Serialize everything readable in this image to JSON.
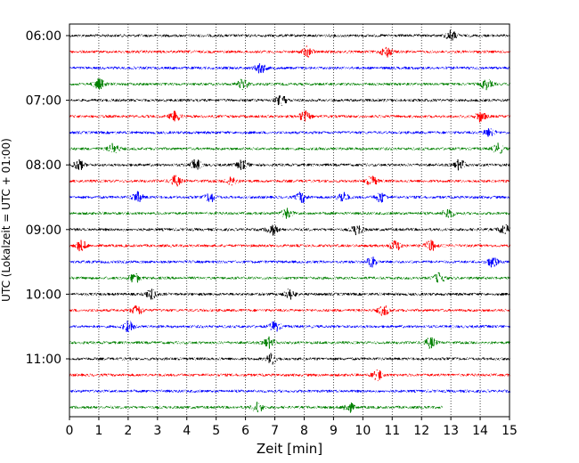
{
  "chart_data": {
    "type": "line",
    "title": "",
    "xlabel": "Zeit  [min]",
    "ylabel": "UTC (Lokalzeit = UTC + 01:00)",
    "xlim": [
      0,
      15
    ],
    "xticks": [
      0,
      1,
      2,
      3,
      4,
      5,
      6,
      7,
      8,
      9,
      10,
      11,
      12,
      13,
      14,
      15
    ],
    "grid": "vertical dotted",
    "trace_interval_minutes": 15,
    "ytick_labels": [
      "06:00",
      "07:00",
      "08:00",
      "09:00",
      "10:00",
      "11:00"
    ],
    "trace_colors": [
      "#000000",
      "#ff0000",
      "#0000ff",
      "#008000"
    ],
    "traces": [
      {
        "start": "06:00",
        "end_minute": 15,
        "events": [
          13.0
        ]
      },
      {
        "start": "06:15",
        "end_minute": 15,
        "events": [
          8.1,
          10.8
        ]
      },
      {
        "start": "06:30",
        "end_minute": 15,
        "events": [
          6.5
        ]
      },
      {
        "start": "06:45",
        "end_minute": 15,
        "events": [
          1.0,
          5.9,
          14.2
        ]
      },
      {
        "start": "07:00",
        "end_minute": 15,
        "events": [
          7.2
        ]
      },
      {
        "start": "07:15",
        "end_minute": 15,
        "events": [
          3.6,
          8.0,
          14.0
        ]
      },
      {
        "start": "07:30",
        "end_minute": 15,
        "events": [
          14.3
        ]
      },
      {
        "start": "07:45",
        "end_minute": 15,
        "events": [
          1.5,
          14.6
        ]
      },
      {
        "start": "08:00",
        "end_minute": 15,
        "events": [
          0.3,
          4.3,
          5.9,
          13.3
        ]
      },
      {
        "start": "08:15",
        "end_minute": 15,
        "events": [
          3.6,
          5.5,
          10.3
        ]
      },
      {
        "start": "08:30",
        "end_minute": 15,
        "events": [
          2.3,
          4.8,
          7.9,
          9.3,
          10.6
        ]
      },
      {
        "start": "08:45",
        "end_minute": 15,
        "events": [
          7.4,
          12.9
        ]
      },
      {
        "start": "09:00",
        "end_minute": 15,
        "events": [
          6.9,
          9.8,
          14.8
        ]
      },
      {
        "start": "09:15",
        "end_minute": 15,
        "events": [
          0.4,
          11.1,
          12.3
        ]
      },
      {
        "start": "09:30",
        "end_minute": 15,
        "events": [
          10.3,
          14.4
        ]
      },
      {
        "start": "09:45",
        "end_minute": 15,
        "events": [
          2.2,
          12.6
        ]
      },
      {
        "start": "10:00",
        "end_minute": 15,
        "events": [
          2.8,
          7.5
        ]
      },
      {
        "start": "10:15",
        "end_minute": 15,
        "events": [
          2.3,
          10.7
        ]
      },
      {
        "start": "10:30",
        "end_minute": 15,
        "events": [
          2.0,
          7.0
        ]
      },
      {
        "start": "10:45",
        "end_minute": 15,
        "events": [
          6.8,
          12.3
        ]
      },
      {
        "start": "11:00",
        "end_minute": 15,
        "events": [
          6.9
        ]
      },
      {
        "start": "11:15",
        "end_minute": 15,
        "events": [
          10.5
        ]
      },
      {
        "start": "11:30",
        "end_minute": 15,
        "events": []
      },
      {
        "start": "11:45",
        "end_minute": 12.7,
        "events": [
          6.4,
          9.5
        ]
      }
    ]
  }
}
